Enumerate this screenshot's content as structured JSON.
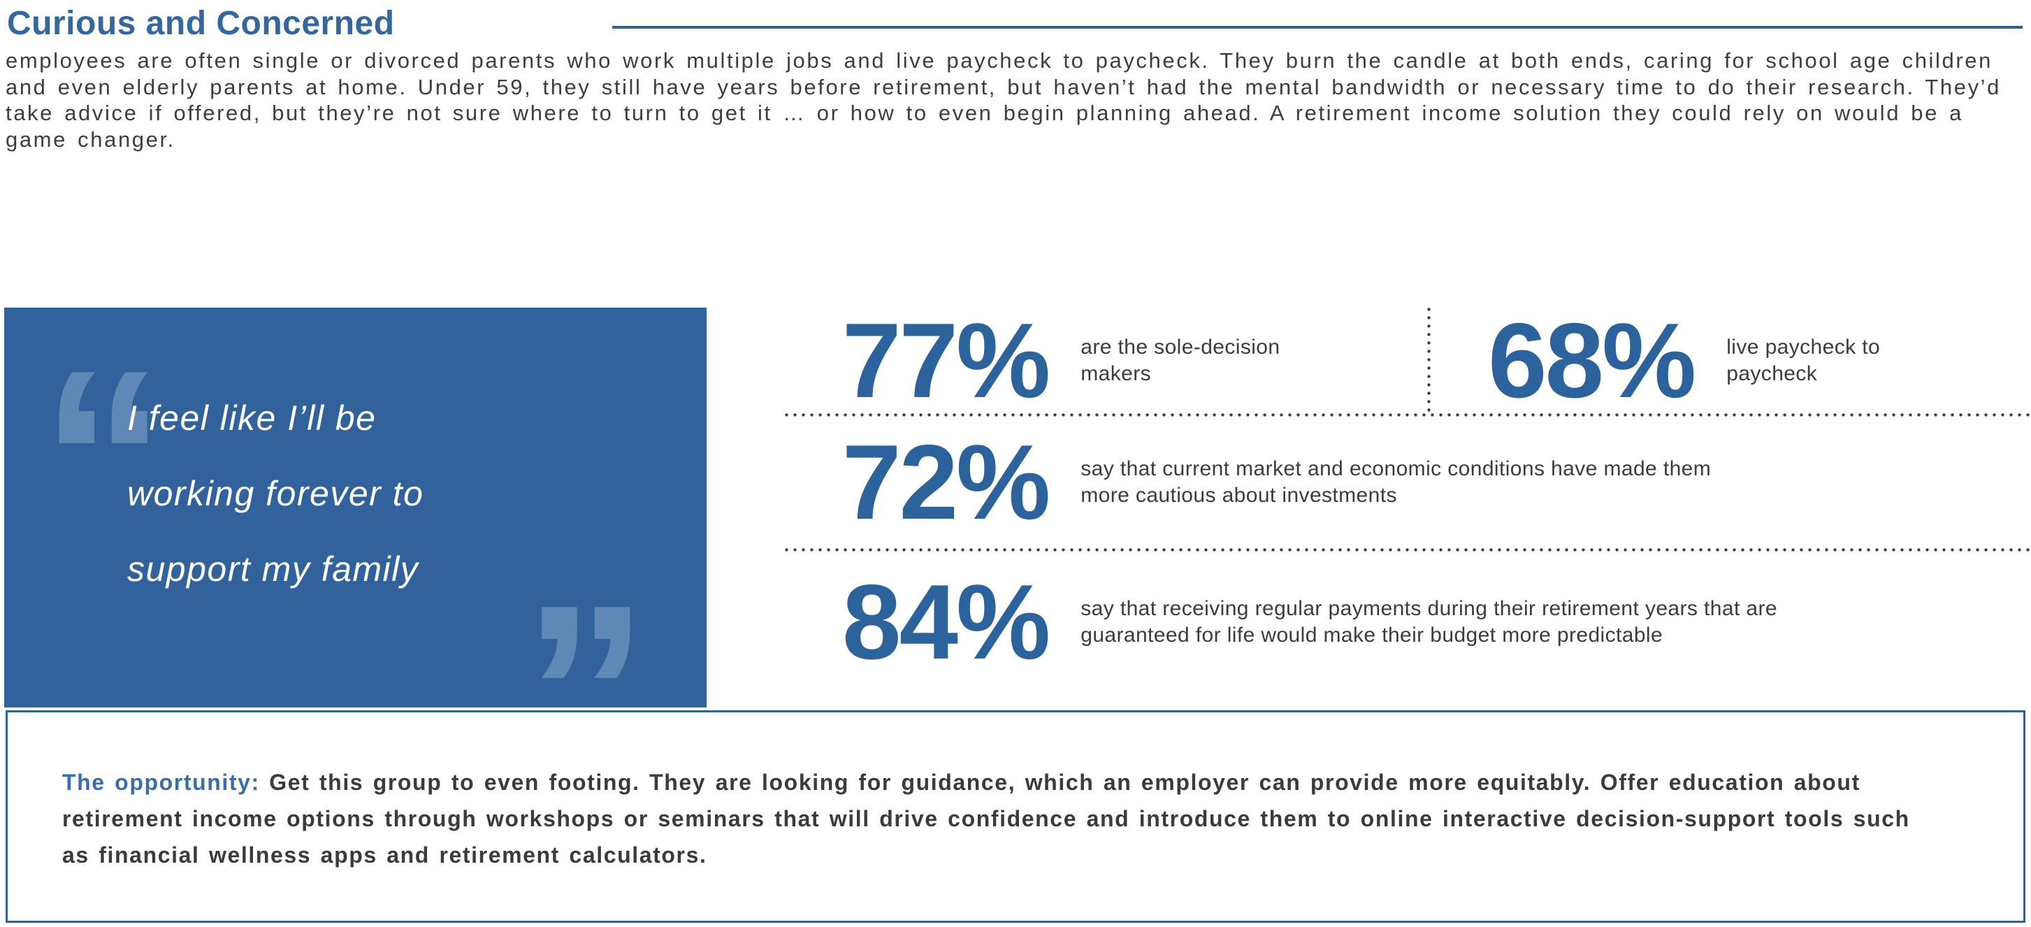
{
  "colors": {
    "accent_blue": "#2e6399",
    "title_blue": "#34679f",
    "quote_box_blue": "#31629b",
    "quote_mark_blue": "#5f88b6",
    "stat_number_blue": "#2d639c",
    "body_text_gray": "#3d3e40",
    "dot_gray": "#3b3b3b"
  },
  "header": {
    "title": "Curious and Concerned"
  },
  "intro": "employees are often single or divorced parents who work multiple jobs and live paycheck to paycheck. They burn the candle at both ends, caring for school age children and even elderly parents at home. Under 59, they still have years before retirement, but haven’t had the mental bandwidth or necessary time to do their research. They’d take advice if offered, but they’re not sure where to turn to get it … or how to even begin planning ahead. A retirement income solution they could rely on would be a game changer.",
  "quote": {
    "open_mark": "“",
    "close_mark": "”",
    "lines": [
      "I feel like I’ll be",
      "working forever to",
      "support my family"
    ]
  },
  "stats": [
    {
      "value": "77%",
      "label": "are the sole-decision makers"
    },
    {
      "value": "68%",
      "label": "live paycheck to paycheck"
    },
    {
      "value": "72%",
      "label": "say that current market and economic conditions have made them more cautious about investments"
    },
    {
      "value": "84%",
      "label": "say that receiving regular payments during their retirement years that are guaranteed for life would make their budget more predictable"
    }
  ],
  "opportunity": {
    "label": "The opportunity:",
    "text": "Get this group to even footing. They are looking for guidance, which an employer can provide more equitably. Offer education about retirement income options through workshops or seminars that will drive confidence and introduce them to online interactive decision-support tools such as financial wellness apps and retirement calculators."
  }
}
